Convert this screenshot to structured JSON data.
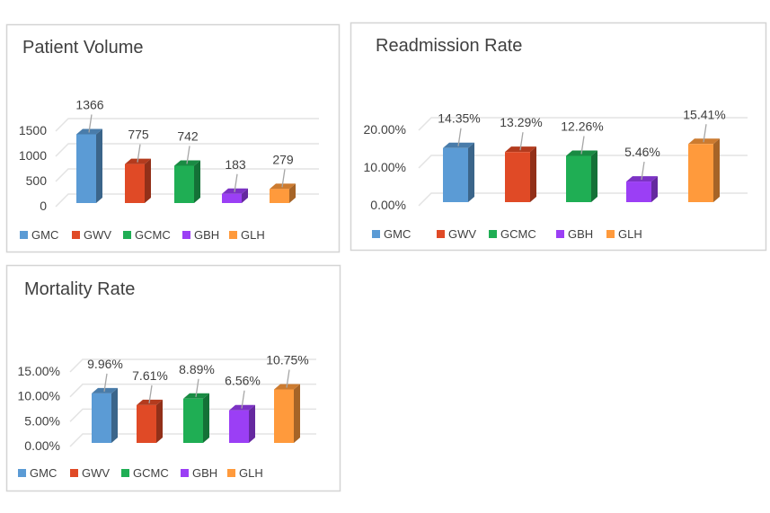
{
  "chart_data": [
    {
      "type": "bar",
      "title": "Patient Volume",
      "categories": [
        "GMC",
        "GWV",
        "GCMC",
        "GBH",
        "GLH"
      ],
      "values": [
        1366,
        775,
        742,
        183,
        279
      ],
      "data_labels": [
        "1366",
        "775",
        "742",
        "183",
        "279"
      ],
      "yticks": [
        "0",
        "500",
        "1000",
        "1500"
      ],
      "ylim": [
        0,
        1500
      ],
      "legend": "bottom",
      "grid": true
    },
    {
      "type": "bar",
      "title": "Readmission Rate",
      "categories": [
        "GMC",
        "GWV",
        "GCMC",
        "GBH",
        "GLH"
      ],
      "values": [
        14.35,
        13.29,
        12.26,
        5.46,
        15.41
      ],
      "data_labels": [
        "14.35%",
        "13.29%",
        "12.26%",
        "5.46%",
        "15.41%"
      ],
      "yticks": [
        "0.00%",
        "10.00%",
        "20.00%"
      ],
      "ylim": [
        0,
        20
      ],
      "legend": "bottom",
      "grid": true
    },
    {
      "type": "bar",
      "title": "Mortality Rate",
      "categories": [
        "GMC",
        "GWV",
        "GCMC",
        "GBH",
        "GLH"
      ],
      "values": [
        9.96,
        7.61,
        8.89,
        6.56,
        10.75
      ],
      "data_labels": [
        "9.96%",
        "7.61%",
        "8.89%",
        "6.56%",
        "10.75%"
      ],
      "yticks": [
        "0.00%",
        "5.00%",
        "10.00%",
        "15.00%"
      ],
      "ylim": [
        0,
        15
      ],
      "legend": "bottom",
      "grid": true
    }
  ],
  "colors": {
    "GMC": "#5b9bd5",
    "GWV": "#e04a26",
    "GCMC": "#1fae54",
    "GBH": "#9b3ff5",
    "GLH": "#ff9a3c"
  }
}
